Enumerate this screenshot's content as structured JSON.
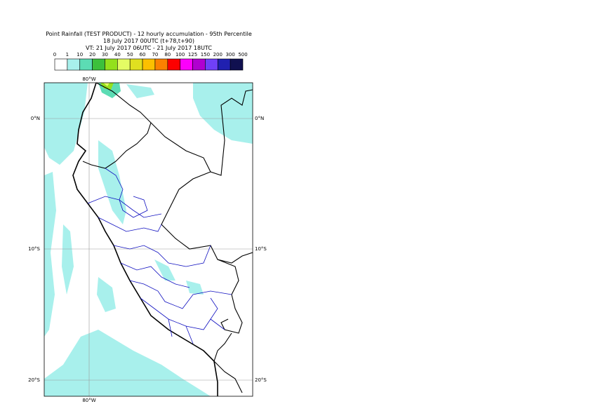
{
  "header": {
    "lines": [
      "Point Rainfall (TEST PRODUCT) - 12 hourly accumulation - 95th Percentile",
      "18 July 2017 00UTC (t+78,t+90)",
      "VT: 21 July 2017 06UTC - 21 July 2017 18UTC"
    ]
  },
  "legend": {
    "labels": [
      "0",
      "1",
      "10",
      "20",
      "30",
      "40",
      "50",
      "60",
      "70",
      "80",
      "100",
      "125",
      "150",
      "200",
      "300",
      "500"
    ],
    "colors": [
      "#ffffff",
      "#a8f0ec",
      "#5cdcb4",
      "#3cc03c",
      "#94e01c",
      "#e4fc64",
      "#e0e020",
      "#fcc000",
      "#fc8000",
      "#fc0000",
      "#fc00fc",
      "#b000d0",
      "#7040f8",
      "#2020b0",
      "#101050"
    ]
  },
  "map": {
    "latitude_labels": [
      "0°N",
      "10°S",
      "20°S"
    ],
    "longitude_label": "80°W"
  }
}
